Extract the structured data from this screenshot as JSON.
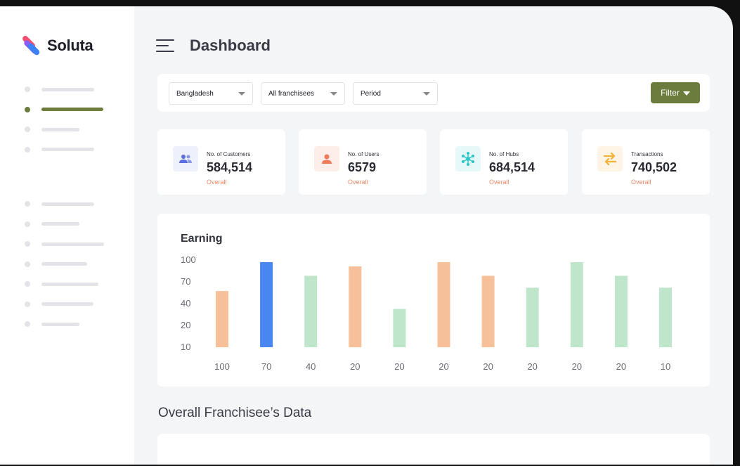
{
  "app": {
    "brand": "Soluta",
    "brand_colors": [
      "#f0506e",
      "#8b5cf6",
      "#3b82f6"
    ],
    "accent": "#6b7c3c"
  },
  "sidebar": {
    "group1": [
      {
        "active": false
      },
      {
        "active": true
      },
      {
        "active": false
      },
      {
        "active": false
      }
    ],
    "group2": [
      {
        "active": false
      },
      {
        "active": false
      },
      {
        "active": false
      },
      {
        "active": false
      },
      {
        "active": false
      },
      {
        "active": false
      },
      {
        "active": false
      }
    ]
  },
  "header": {
    "title": "Dashboard",
    "menu_icon": "hamburger-icon"
  },
  "filters": {
    "country": "Bangladesh",
    "franchisee": "All franchisees",
    "period": "Period",
    "button_label": "Filter",
    "button_icon": "funnel-icon"
  },
  "stats": [
    {
      "label": "No. of Customers",
      "value": "584,514",
      "sub": "Overall",
      "icon": "users-icon",
      "icon_color": "#5b6ee1",
      "icon_bg": "#eef0fb"
    },
    {
      "label": "No. of Users",
      "value": "6579",
      "sub": "Overall",
      "icon": "user-icon",
      "icon_color": "#f07a5a",
      "icon_bg": "#fdeeea"
    },
    {
      "label": "No. of Hubs",
      "value": "684,514",
      "sub": "Overall",
      "icon": "hub-network-icon",
      "icon_color": "#2cc7c7",
      "icon_bg": "#e6f8f8"
    },
    {
      "label": "Transactions",
      "value": "740,502",
      "sub": "Overall",
      "icon": "swap-arrows-icon",
      "icon_color": "#f5b335",
      "icon_bg": "#fef5e6"
    }
  ],
  "chart_data": {
    "type": "bar",
    "title": "Earning",
    "categories": [
      "100",
      "70",
      "40",
      "20",
      "20",
      "20",
      "20",
      "20",
      "20",
      "20",
      "10"
    ],
    "values": [
      66,
      100,
      84,
      95,
      45,
      100,
      84,
      70,
      100,
      84,
      70
    ],
    "colors": [
      "#f5c09a",
      "#4a86f0",
      "#bfe5cb",
      "#f5c09a",
      "#bfe5cb",
      "#f5c09a",
      "#f5c09a",
      "#bfe5cb",
      "#bfe5cb",
      "#bfe5cb",
      "#bfe5cb"
    ],
    "y_ticks": [
      "100",
      "70",
      "40",
      "20",
      "10"
    ],
    "grid": false,
    "legend": false
  },
  "section": {
    "title": "Overall Franchisee’s Data"
  }
}
